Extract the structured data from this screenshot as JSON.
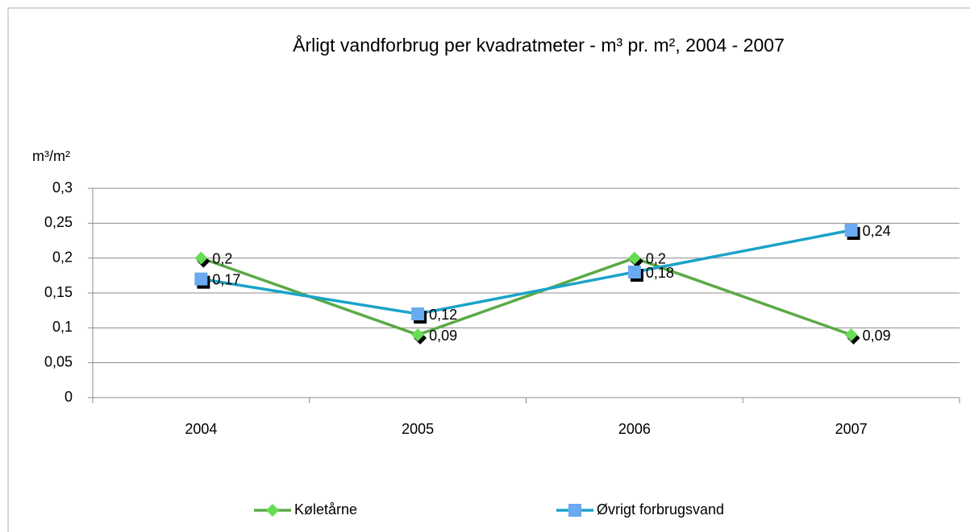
{
  "chart_data": {
    "type": "line",
    "title": "Årligt vandforbrug per kvadratmeter - m³ pr. m², 2004 - 2007",
    "y_label": "m³/m²",
    "categories": [
      "2004",
      "2005",
      "2006",
      "2007"
    ],
    "series": [
      {
        "name": "Køletårne",
        "color": "#5aaa46",
        "marker_color": "#66dd55",
        "marker": "diamond",
        "values": [
          0.2,
          0.09,
          0.2,
          0.09
        ],
        "value_labels": [
          "0,2",
          "0,09",
          "0,2",
          "0,09"
        ]
      },
      {
        "name": "Øvrigt forbrugsvand",
        "color": "#1aa3c8",
        "marker_color": "#6aaaf0",
        "marker": "square",
        "values": [
          0.17,
          0.12,
          0.18,
          0.24
        ],
        "value_labels": [
          "0,17",
          "0,12",
          "0,18",
          "0,24"
        ]
      }
    ],
    "ylim": [
      0,
      0.3
    ],
    "yticks": [
      0,
      {
        "value": 0.05,
        "label": "0,05"
      },
      {
        "value": 0.1,
        "label": "0,1"
      },
      {
        "value": 0.15,
        "label": "0,15"
      },
      {
        "value": 0.2,
        "label": "0,2"
      },
      {
        "value": 0.25,
        "label": "0,25"
      },
      {
        "value": 0.3,
        "label": "0,3"
      }
    ],
    "grid": true,
    "legend": "bottom"
  }
}
